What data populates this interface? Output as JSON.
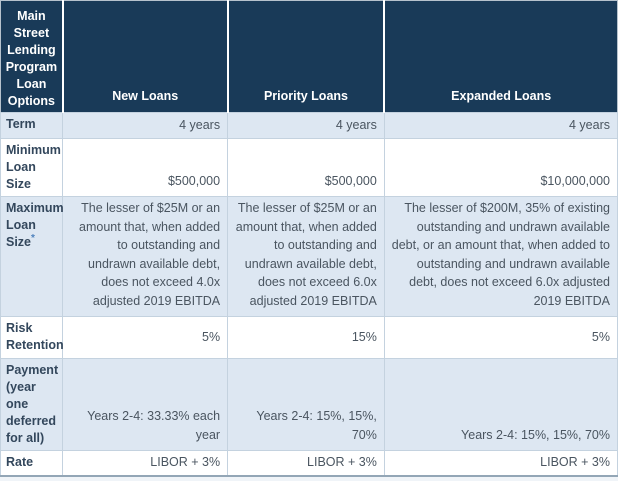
{
  "table": {
    "corner_header": "Main Street Lending Program Loan Options",
    "columns": [
      "New Loans",
      "Priority Loans",
      "Expanded Loans"
    ],
    "rows": [
      {
        "label": "Term",
        "values": [
          "4 years",
          "4 years",
          "4 years"
        ]
      },
      {
        "label": "Minimum Loan Size",
        "values": [
          "$500,000",
          "$500,000",
          "$10,000,000"
        ]
      },
      {
        "label": "Maximum Loan Size",
        "footnote_marker": "*",
        "values": [
          "The lesser of $25M or an amount that, when added to outstanding and undrawn available debt, does not exceed 4.0x adjusted 2019 EBITDA",
          "The lesser of $25M or an amount that, when added to outstanding and undrawn available debt, does not exceed 6.0x adjusted 2019 EBITDA",
          "The lesser of $200M, 35% of existing outstanding and undrawn available debt, or an amount that, when added to outstanding and undrawn available debt, does not exceed 6.0x adjusted 2019 EBITDA"
        ]
      },
      {
        "label": "Risk Retention",
        "values": [
          "5%",
          "15%",
          "5%"
        ]
      },
      {
        "label": "Payment (year one deferred for all)",
        "values": [
          "Years 2-4: 33.33% each year",
          "Years 2-4: 15%, 15%, 70%",
          "Years 2-4: 15%, 15%, 70%"
        ]
      },
      {
        "label": "Rate",
        "values": [
          "LIBOR + 3%",
          "LIBOR + 3%",
          "LIBOR + 3%"
        ]
      }
    ]
  },
  "colors": {
    "header_bg": "#193a58",
    "header_text": "#ffffff",
    "stripe_bg": "#dde7f2",
    "label_text": "#33475c",
    "value_text": "#4a5560",
    "border": "#c4d2df",
    "footnote_marker": "#4e82bd"
  }
}
